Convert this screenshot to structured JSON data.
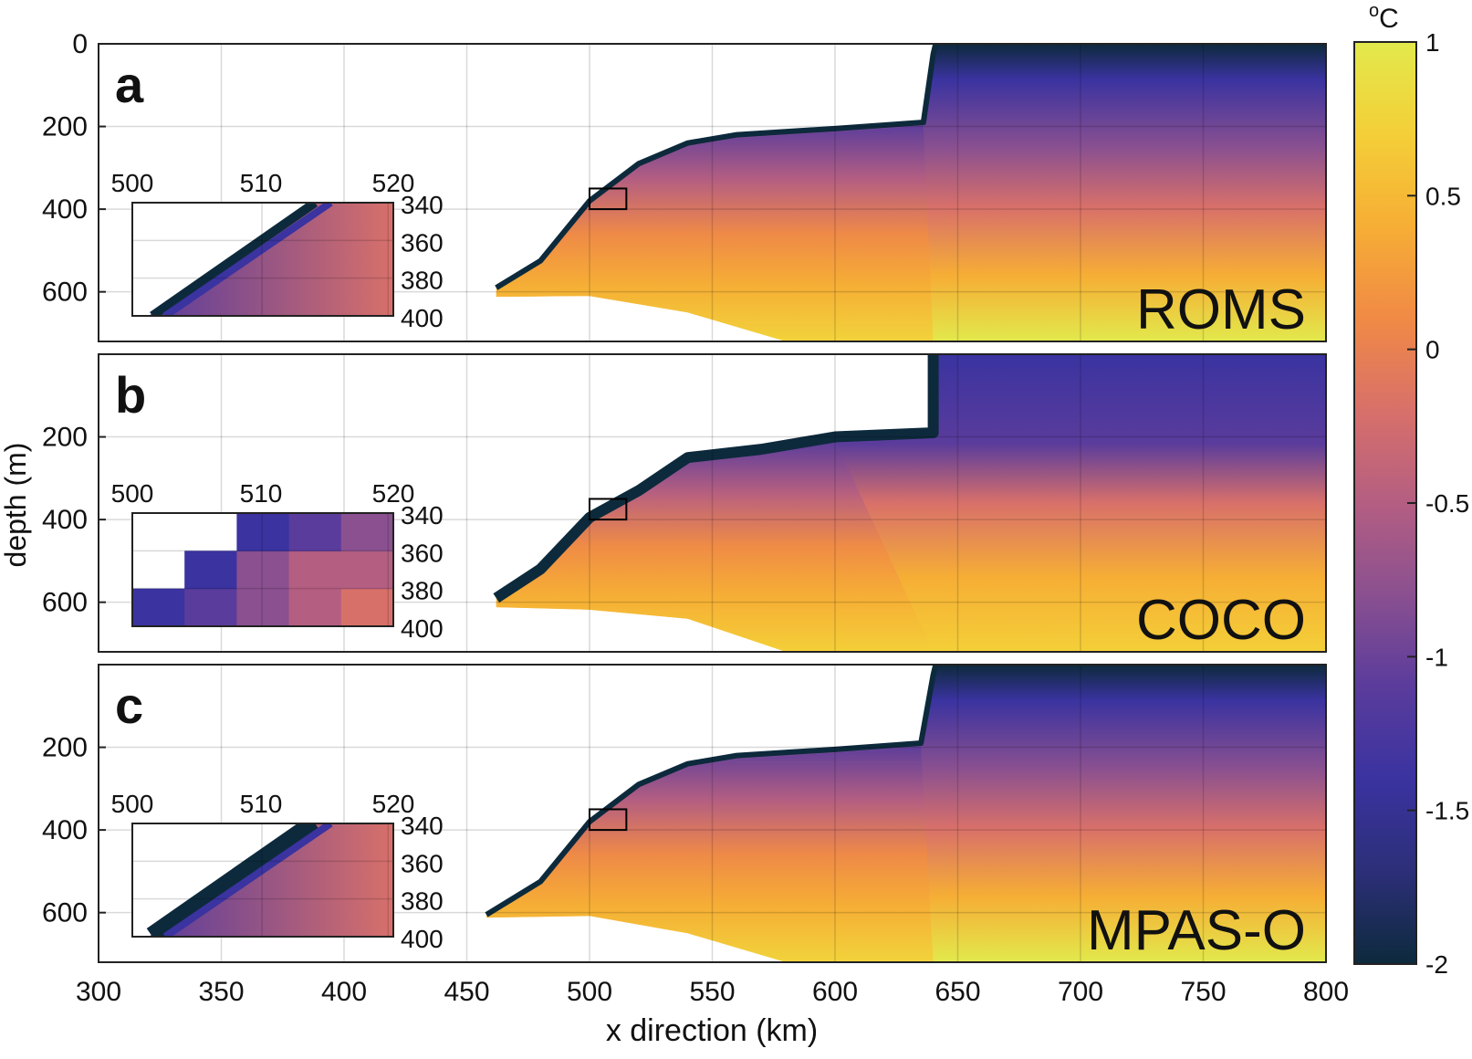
{
  "chart_data": {
    "type": "heatmap",
    "xlabel": "x direction (km)",
    "ylabel": "depth (m)",
    "xlim": [
      300,
      800
    ],
    "ylim": [
      0,
      720
    ],
    "y_reversed": true,
    "grid": true,
    "x_ticks": [
      "300",
      "350",
      "400",
      "450",
      "500",
      "550",
      "600",
      "650",
      "700",
      "750",
      "800"
    ],
    "colorbar": {
      "unit": "oC",
      "ticks": [
        "1",
        "0.5",
        "0",
        "-0.5",
        "-1",
        "-1.5",
        "-2"
      ],
      "range": [
        -2,
        1
      ],
      "colors": [
        "#0d2a3c",
        "#2c2f78",
        "#3a33a0",
        "#5a3c9c",
        "#8a5090",
        "#b45e82",
        "#d8706a",
        "#f08a45",
        "#f6ae35",
        "#f4cf38",
        "#e2e94c"
      ]
    },
    "panels": [
      {
        "letter": "a",
        "model": "ROMS",
        "y_ticks": [
          "0",
          "200",
          "400",
          "600"
        ],
        "inset": {
          "x_ticks": [
            "500",
            "510",
            "520"
          ],
          "y_ticks": [
            "340",
            "360",
            "380",
            "400"
          ]
        },
        "ice_front_x": 640,
        "draft_profile": [
          [
            462,
            590
          ],
          [
            480,
            525
          ],
          [
            500,
            380
          ],
          [
            520,
            290
          ],
          [
            540,
            240
          ],
          [
            560,
            220
          ],
          [
            600,
            205
          ],
          [
            636,
            190
          ],
          [
            640,
            25
          ],
          [
            641,
            0
          ]
        ],
        "seabed_profile": [
          [
            462,
            612
          ],
          [
            500,
            610
          ],
          [
            540,
            650
          ],
          [
            580,
            720
          ]
        ]
      },
      {
        "letter": "b",
        "model": "COCO",
        "y_ticks": [
          "200",
          "400",
          "600"
        ],
        "inset": {
          "x_ticks": [
            "500",
            "510",
            "520"
          ],
          "y_ticks": [
            "340",
            "360",
            "380",
            "400"
          ]
        },
        "ice_front_x": 640,
        "draft_profile": [
          [
            462,
            590
          ],
          [
            480,
            520
          ],
          [
            500,
            395
          ],
          [
            520,
            330
          ],
          [
            540,
            250
          ],
          [
            570,
            230
          ],
          [
            600,
            200
          ],
          [
            640,
            190
          ],
          [
            640,
            0
          ]
        ],
        "seabed_profile": [
          [
            462,
            612
          ],
          [
            500,
            618
          ],
          [
            540,
            640
          ],
          [
            580,
            720
          ]
        ]
      },
      {
        "letter": "c",
        "model": "MPAS-O",
        "y_ticks": [
          "200",
          "400",
          "600"
        ],
        "inset": {
          "x_ticks": [
            "500",
            "510",
            "520"
          ],
          "y_ticks": [
            "340",
            "360",
            "380",
            "400"
          ]
        },
        "ice_front_x": 640,
        "draft_profile": [
          [
            458,
            605
          ],
          [
            480,
            525
          ],
          [
            500,
            380
          ],
          [
            520,
            290
          ],
          [
            540,
            240
          ],
          [
            560,
            220
          ],
          [
            600,
            205
          ],
          [
            635,
            190
          ],
          [
            640,
            25
          ],
          [
            641,
            0
          ]
        ],
        "seabed_profile": [
          [
            458,
            612
          ],
          [
            500,
            608
          ],
          [
            540,
            650
          ],
          [
            580,
            720
          ]
        ]
      }
    ]
  }
}
